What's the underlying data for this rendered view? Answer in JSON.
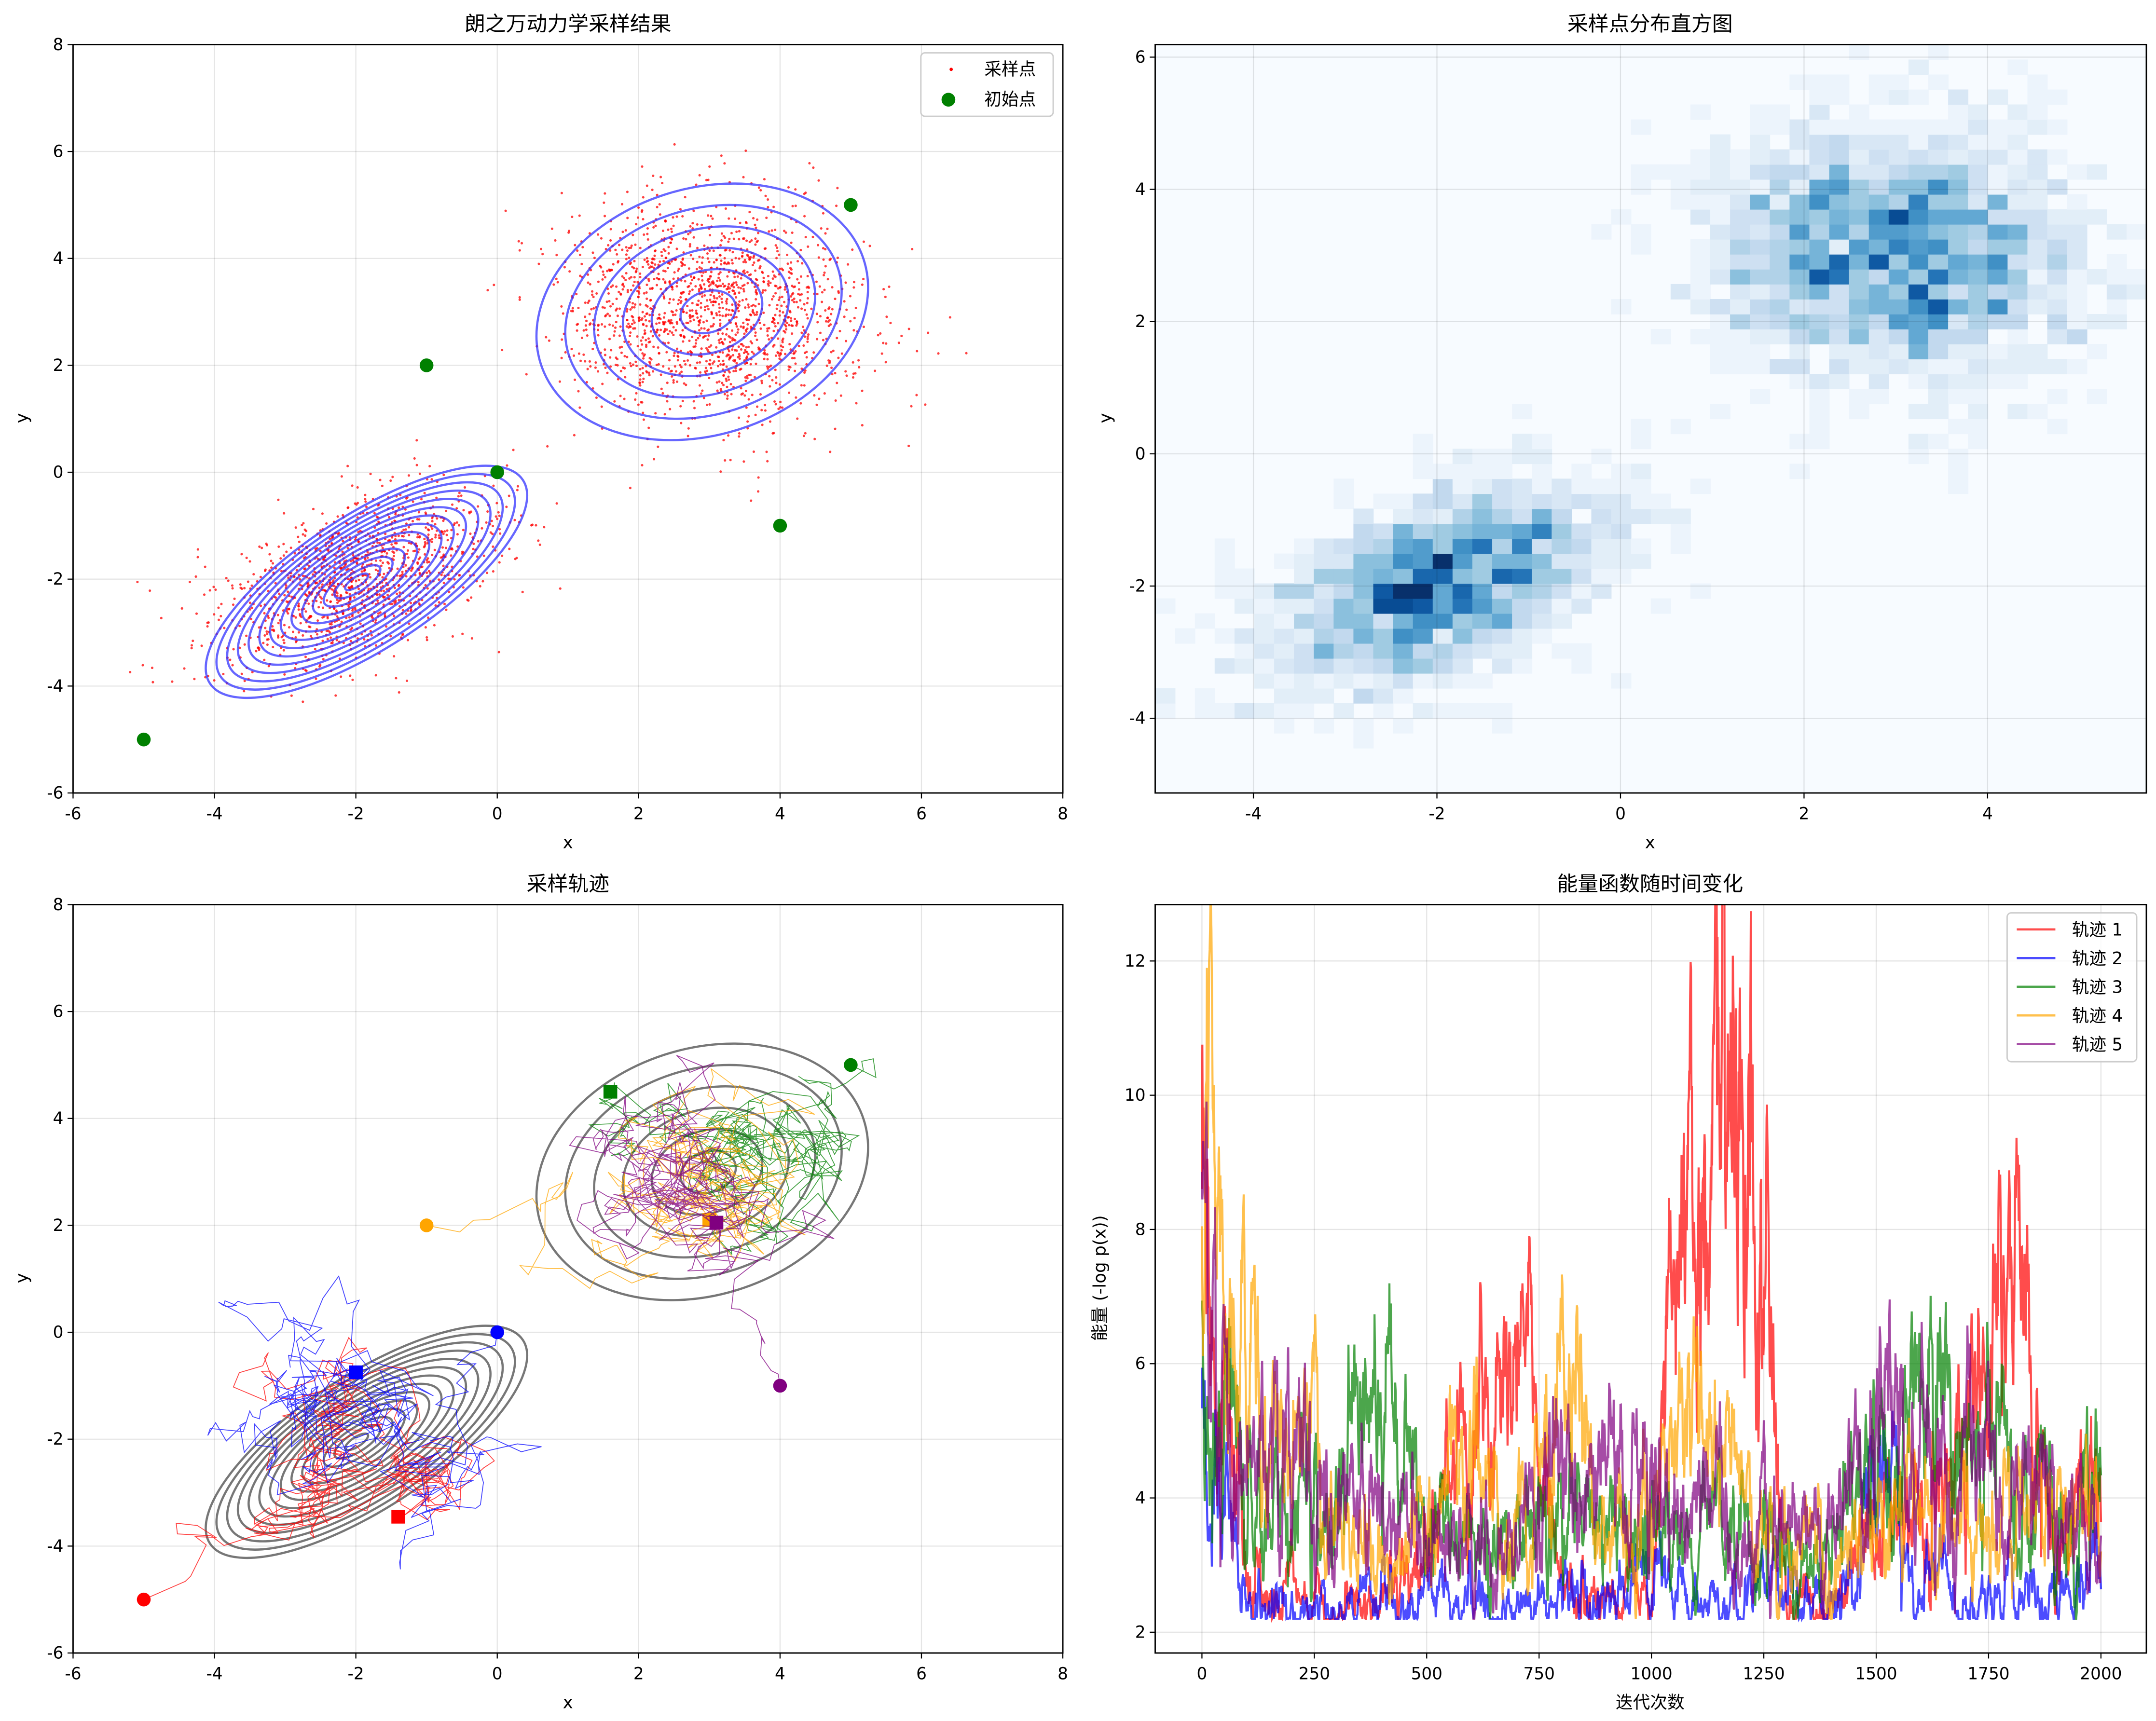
{
  "chart_data": [
    {
      "type": "scatter",
      "title": "朗之万动力学采样结果",
      "xlabel": "x",
      "ylabel": "y",
      "xlim": [
        -6,
        8
      ],
      "ylim": [
        -6,
        8
      ],
      "xticks": [
        -6,
        -4,
        -2,
        0,
        2,
        4,
        6,
        8
      ],
      "yticks": [
        -6,
        -4,
        -2,
        0,
        2,
        4,
        6,
        8
      ],
      "grid": true,
      "legend_position": "top-right",
      "legend": [
        "采样点",
        "初始点"
      ],
      "sample_clusters": [
        {
          "center": [
            -2,
            -2
          ],
          "spread": [
            1.0,
            0.85
          ],
          "correlation": 0.5
        },
        {
          "center": [
            3,
            3
          ],
          "spread": [
            1.05,
            1.0
          ],
          "correlation": -0.1
        }
      ],
      "initial_points": [
        [
          -5,
          -5
        ],
        [
          -1,
          2
        ],
        [
          0,
          0
        ],
        [
          4,
          -1
        ],
        [
          5,
          5
        ]
      ],
      "contour_centers": [
        [
          -2,
          -2
        ],
        [
          3,
          3
        ]
      ],
      "colors": {
        "samples": "#ff0000",
        "initial": "#008000",
        "contours": "#3333ff"
      }
    },
    {
      "type": "heatmap",
      "title": "采样点分布直方图",
      "xlabel": "x",
      "ylabel": "y",
      "xlim": [
        -5.07,
        5.73
      ],
      "ylim": [
        -5.13,
        6.19
      ],
      "xticks": [
        -4,
        -2,
        0,
        2,
        4
      ],
      "yticks": [
        -4,
        -2,
        0,
        2,
        4,
        6
      ],
      "grid": true,
      "colormap": "Blues",
      "density_peaks": [
        [
          -2,
          -2
        ],
        [
          3,
          3
        ]
      ]
    },
    {
      "type": "line",
      "title": "采样轨迹",
      "xlabel": "x",
      "ylabel": "y",
      "xlim": [
        -6,
        8
      ],
      "ylim": [
        -6,
        8
      ],
      "xticks": [
        -6,
        -4,
        -2,
        0,
        2,
        4,
        6,
        8
      ],
      "yticks": [
        -6,
        -4,
        -2,
        0,
        2,
        4,
        6,
        8
      ],
      "grid": true,
      "trajectories": [
        {
          "color": "#ff0000",
          "start": [
            -5,
            -5
          ],
          "end": [
            -1.4,
            -3.45
          ],
          "target": [
            -2,
            -2
          ]
        },
        {
          "color": "#0000ff",
          "start": [
            0,
            0
          ],
          "end": [
            -2,
            -0.75
          ],
          "target": [
            -2,
            -2
          ]
        },
        {
          "color": "#008000",
          "start": [
            5,
            5
          ],
          "end": [
            1.6,
            4.5
          ],
          "target": [
            3,
            3
          ]
        },
        {
          "color": "#ffa500",
          "start": [
            -1,
            2
          ],
          "end": [
            3.0,
            2.1
          ],
          "target": [
            3,
            3
          ]
        },
        {
          "color": "#800080",
          "start": [
            4,
            -1
          ],
          "end": [
            3.1,
            2.05
          ],
          "target": [
            3,
            3
          ]
        }
      ],
      "contour_color": "#555555"
    },
    {
      "type": "line",
      "title": "能量函数随时间变化",
      "xlabel": "迭代次数",
      "ylabel": "能量 (-log p(x))",
      "xlim": [
        -104,
        2101
      ],
      "ylim": [
        1.69,
        12.84
      ],
      "xticks": [
        0,
        250,
        500,
        750,
        1000,
        1250,
        1500,
        1750,
        2000
      ],
      "yticks": [
        2,
        4,
        6,
        8,
        10,
        12
      ],
      "grid": true,
      "legend_position": "top-right",
      "x_sample_step": 100,
      "series": [
        {
          "name": "轨迹 1",
          "color": "#ff0000",
          "values": [
            8.3,
            3.0,
            2.5,
            2.3,
            2.5,
            3.3,
            5.2,
            6.2,
            2.6,
            2.5,
            2.6,
            10.0,
            11.5,
            2.5,
            2.4,
            3.5,
            4.0,
            5.0,
            7.0,
            3.8,
            4.0
          ]
        },
        {
          "name": "轨迹 2",
          "color": "#0000ff",
          "values": [
            4.9,
            2.5,
            2.5,
            2.4,
            2.6,
            2.5,
            2.6,
            2.4,
            2.5,
            2.6,
            3.0,
            2.5,
            2.6,
            2.6,
            2.5,
            4.5,
            2.8,
            2.5,
            2.6,
            2.5,
            3.0
          ]
        },
        {
          "name": "轨迹 3",
          "color": "#008000",
          "values": [
            6.5,
            4.0,
            4.2,
            4.5,
            5.5,
            3.5,
            3.3,
            3.4,
            3.8,
            3.4,
            3.8,
            3.3,
            3.5,
            3.3,
            3.3,
            4.5,
            6.0,
            4.5,
            4.5,
            3.5,
            4.2
          ]
        },
        {
          "name": "轨迹 4",
          "color": "#ffa500",
          "values": [
            9.7,
            5.5,
            5.0,
            3.3,
            3.2,
            3.5,
            4.5,
            3.5,
            6.5,
            3.5,
            4.0,
            5.0,
            4.0,
            3.3,
            3.3,
            3.3,
            4.0,
            3.5,
            4.0,
            3.5,
            3.5
          ]
        },
        {
          "name": "轨迹 5",
          "color": "#800080",
          "values": [
            8.5,
            4.0,
            5.0,
            3.8,
            3.6,
            3.4,
            3.5,
            3.3,
            4.5,
            4.5,
            4.5,
            4.0,
            3.5,
            3.3,
            3.5,
            5.5,
            4.5,
            5.0,
            4.0,
            4.0,
            3.3
          ]
        }
      ]
    }
  ]
}
